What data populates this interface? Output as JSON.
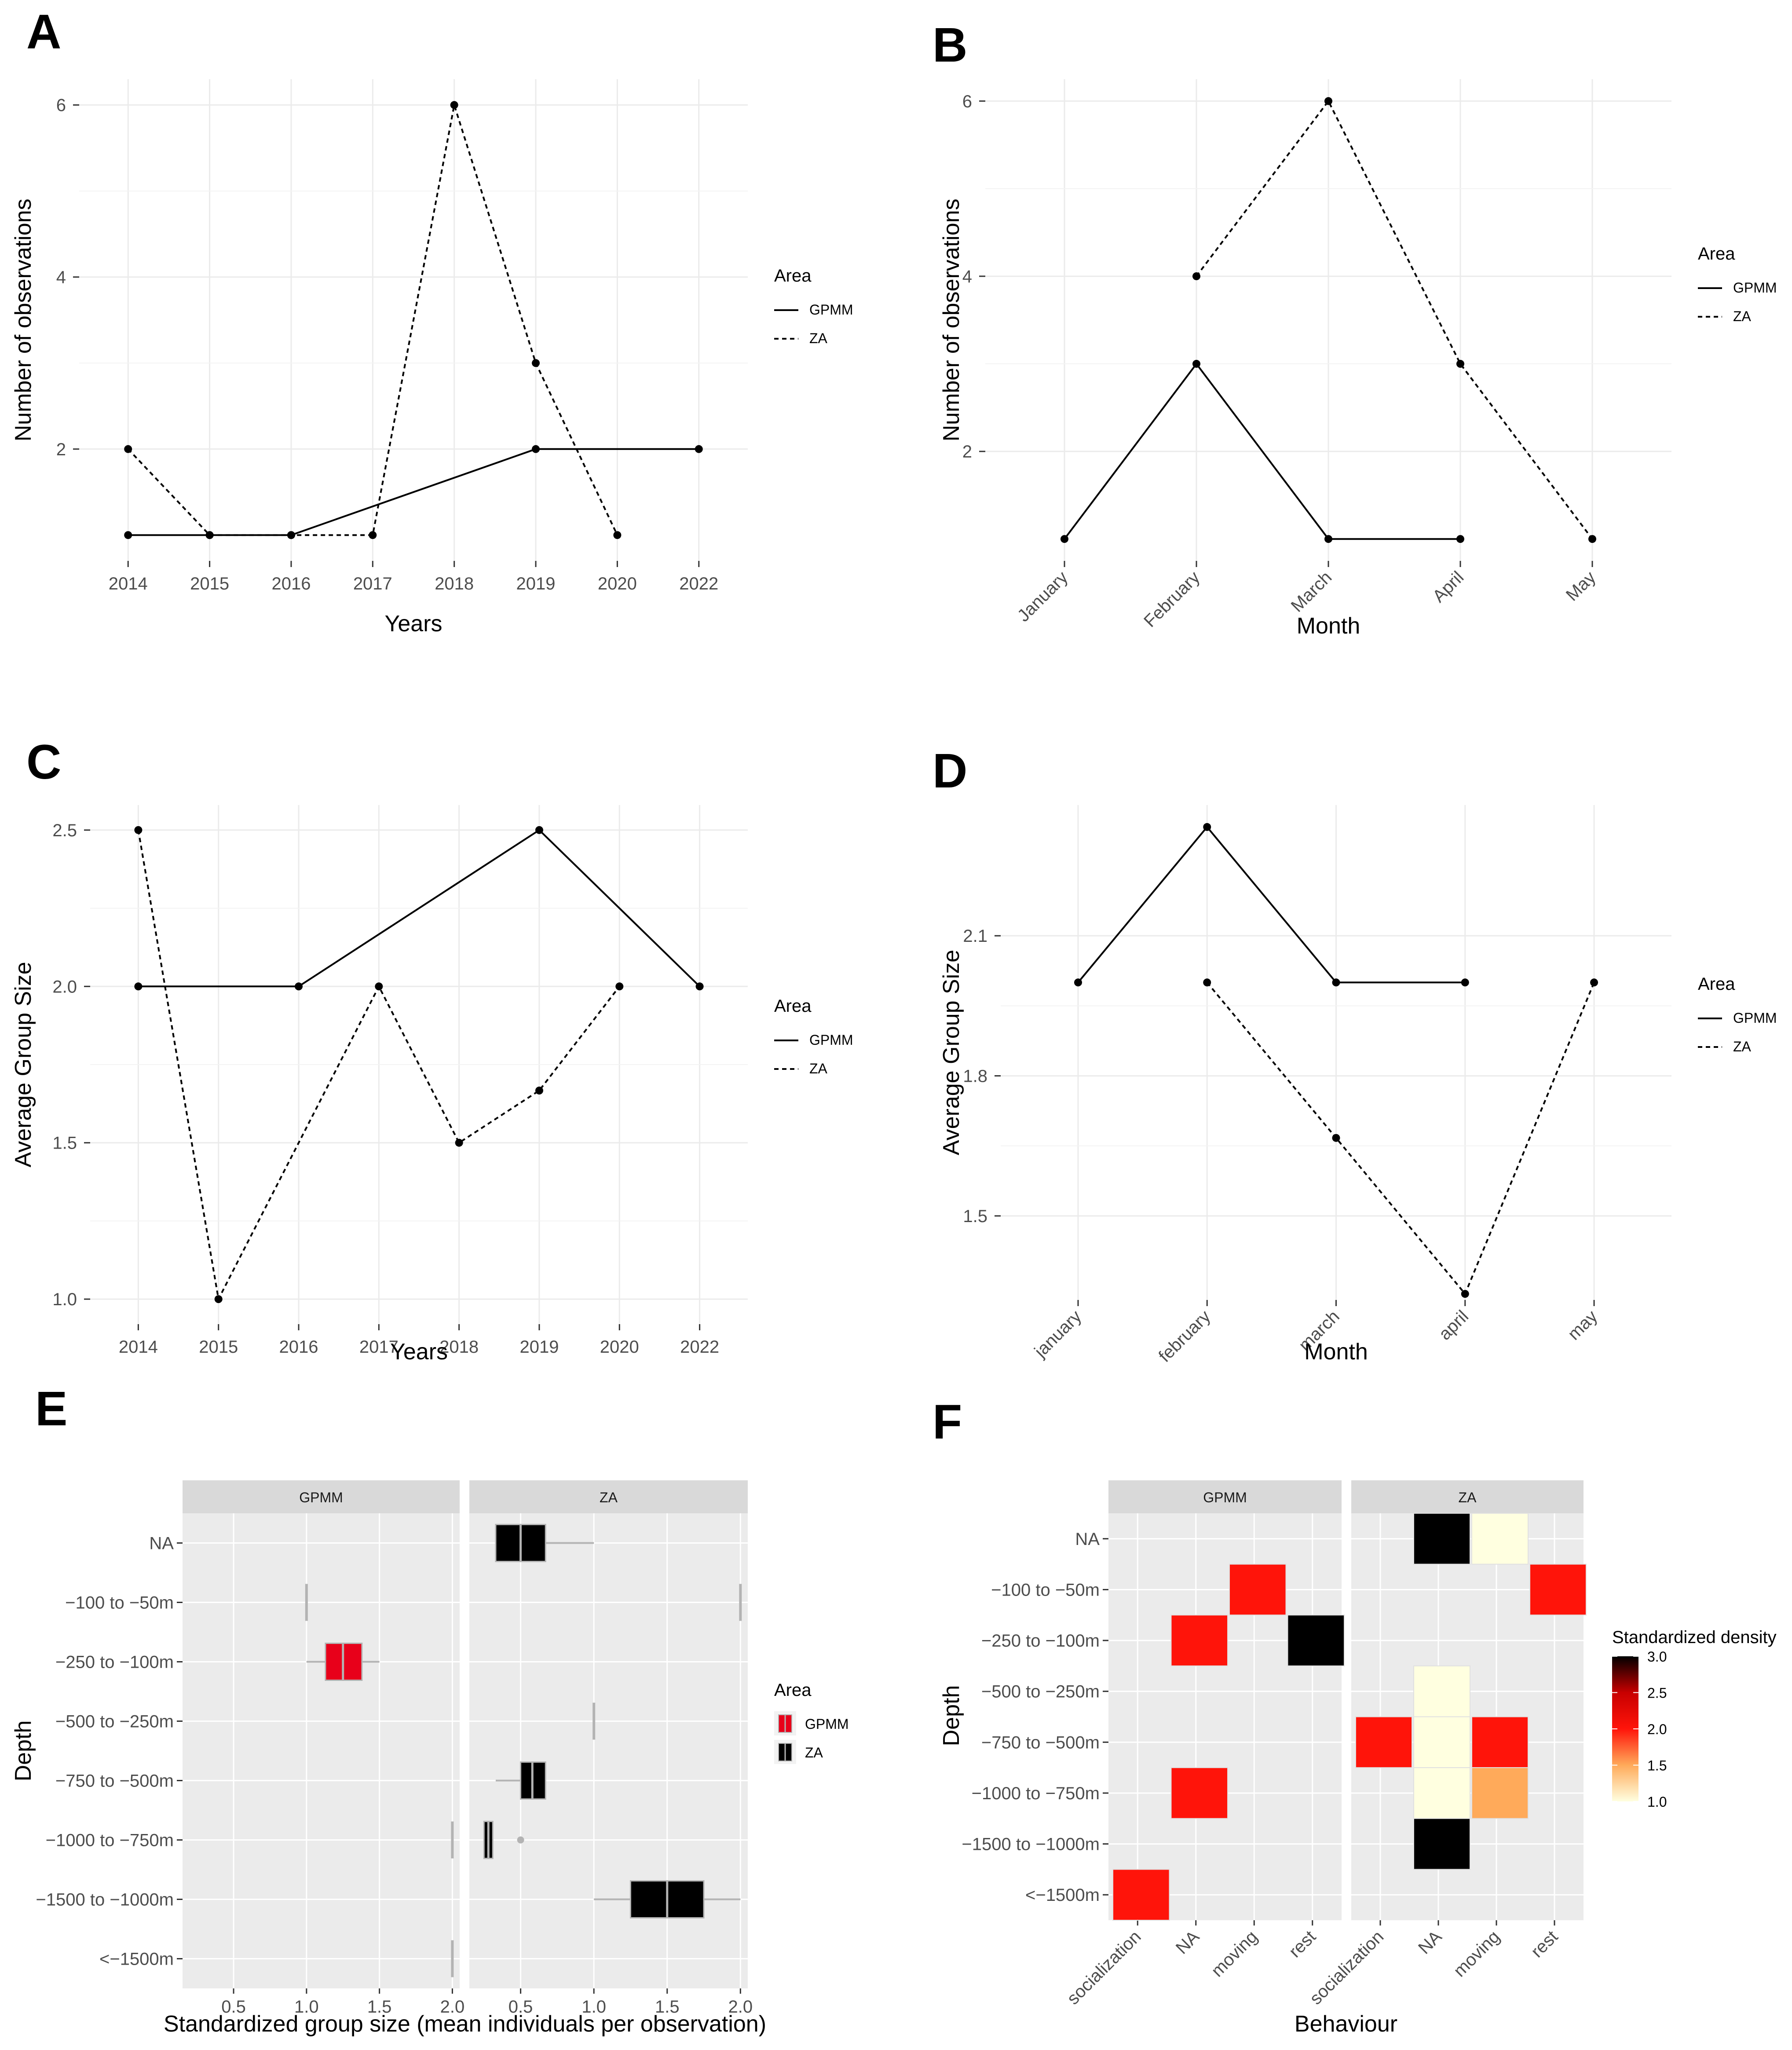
{
  "chart_data": [
    {
      "panel": "A",
      "type": "line",
      "xlabel": "Years",
      "ylabel": "Number of observations",
      "categories": [
        "2014",
        "2015",
        "2016",
        "2017",
        "2018",
        "2019",
        "2020",
        "2022"
      ],
      "ylim": [
        0.7,
        6.3
      ],
      "yticks": [
        2,
        4,
        6
      ],
      "legend": {
        "title": "Area",
        "placement": "right"
      },
      "series": [
        {
          "name": "GPMM",
          "style": "solid",
          "values": [
            1,
            1,
            1,
            null,
            null,
            2,
            null,
            2
          ]
        },
        {
          "name": "ZA",
          "style": "dashed",
          "values": [
            2,
            1,
            1,
            1,
            6,
            3,
            1,
            null
          ]
        }
      ]
    },
    {
      "panel": "B",
      "type": "line",
      "xlabel": "Month",
      "ylabel": "Number of observations",
      "categories": [
        "January",
        "February",
        "March",
        "April",
        "May"
      ],
      "ylim": [
        0.75,
        6.25
      ],
      "yticks": [
        2,
        4,
        6
      ],
      "legend": {
        "title": "Area",
        "placement": "right"
      },
      "series": [
        {
          "name": "GPMM",
          "style": "solid",
          "values": [
            1,
            3,
            1,
            1,
            null
          ]
        },
        {
          "name": "ZA",
          "style": "dashed",
          "values": [
            null,
            4,
            6,
            3,
            1
          ]
        }
      ]
    },
    {
      "panel": "C",
      "type": "line",
      "xlabel": "Years",
      "ylabel": "Average Group Size",
      "categories": [
        "2014",
        "2015",
        "2016",
        "2017",
        "2018",
        "2019",
        "2020",
        "2022"
      ],
      "ylim": [
        0.92,
        2.58
      ],
      "yticks": [
        1.0,
        1.5,
        2.0,
        2.5
      ],
      "ytick_labels": [
        "1.0",
        "1.5",
        "2.0",
        "2.5"
      ],
      "legend": {
        "title": "Area",
        "placement": "right"
      },
      "series": [
        {
          "name": "GPMM",
          "style": "solid",
          "values": [
            2.0,
            null,
            2.0,
            null,
            null,
            2.5,
            null,
            2.0
          ]
        },
        {
          "name": "ZA",
          "style": "dashed",
          "values": [
            2.5,
            1.0,
            null,
            2.0,
            1.5,
            1.667,
            2.0,
            null
          ]
        }
      ]
    },
    {
      "panel": "D",
      "type": "line",
      "xlabel": "Month",
      "ylabel": "Average Group Size",
      "categories": [
        "january",
        "february",
        "march",
        "april",
        "may"
      ],
      "ylim": [
        1.32,
        2.38
      ],
      "yticks": [
        1.5,
        1.8,
        2.1
      ],
      "ytick_labels": [
        "1.5",
        "1.8",
        "2.1"
      ],
      "legend": {
        "title": "Area",
        "placement": "right"
      },
      "series": [
        {
          "name": "GPMM",
          "style": "solid",
          "values": [
            2.0,
            2.333,
            2.0,
            2.0,
            null
          ]
        },
        {
          "name": "ZA",
          "style": "dashed",
          "values": [
            null,
            2.0,
            1.667,
            1.333,
            2.0
          ]
        }
      ]
    },
    {
      "panel": "E",
      "type": "boxplot",
      "xlabel": "Standardized group size (mean individuals per observation)",
      "ylabel": "Depth",
      "categories": [
        "NA",
        "−100 to −50m",
        "−250 to −100m",
        "−500 to −250m",
        "−750 to −500m",
        "−1000 to −750m",
        "−1500 to −1000m",
        "<−1500m"
      ],
      "xlim": [
        0.15,
        2.05
      ],
      "xticks": [
        0.5,
        1.0,
        1.5,
        2.0
      ],
      "xtick_labels": [
        "0.5",
        "1.0",
        "1.5",
        "2.0"
      ],
      "facets": [
        "GPMM",
        "ZA"
      ],
      "legend": {
        "title": "Area",
        "placement": "right",
        "entries": [
          "GPMM",
          "ZA"
        ]
      },
      "colors": {
        "GPMM": "#e8001a",
        "ZA": "#000000",
        "whisker": "#b3b3b3",
        "strip": "#d9d9d9",
        "panel": "#ebebeb"
      },
      "boxes": [
        {
          "facet": "GPMM",
          "depth": "−100 to −50m",
          "min": 1.0,
          "q1": 1.0,
          "median": 1.0,
          "q3": 1.0,
          "max": 1.0
        },
        {
          "facet": "GPMM",
          "depth": "−250 to −100m",
          "min": 1.0,
          "q1": 1.13,
          "median": 1.25,
          "q3": 1.38,
          "max": 1.5
        },
        {
          "facet": "GPMM",
          "depth": "−1000 to −750m",
          "min": 2.0,
          "q1": 2.0,
          "median": 2.0,
          "q3": 2.0,
          "max": 2.0
        },
        {
          "facet": "GPMM",
          "depth": "<−1500m",
          "min": 2.0,
          "q1": 2.0,
          "median": 2.0,
          "q3": 2.0,
          "max": 2.0
        },
        {
          "facet": "ZA",
          "depth": "NA",
          "min": 0.33,
          "q1": 0.33,
          "median": 0.5,
          "q3": 0.67,
          "max": 1.0
        },
        {
          "facet": "ZA",
          "depth": "−100 to −50m",
          "min": 2.0,
          "q1": 2.0,
          "median": 2.0,
          "q3": 2.0,
          "max": 2.0
        },
        {
          "facet": "ZA",
          "depth": "−500 to −250m",
          "min": 1.0,
          "q1": 1.0,
          "median": 1.0,
          "q3": 1.0,
          "max": 1.0
        },
        {
          "facet": "ZA",
          "depth": "−750 to −500m",
          "min": 0.33,
          "q1": 0.5,
          "median": 0.58,
          "q3": 0.67,
          "max": 0.67
        },
        {
          "facet": "ZA",
          "depth": "−1000 to −750m",
          "min": 0.25,
          "q1": 0.25,
          "median": 0.28,
          "q3": 0.31,
          "max": 0.31,
          "outliers": [
            0.5
          ]
        },
        {
          "facet": "ZA",
          "depth": "−1500 to −1000m",
          "min": 1.0,
          "q1": 1.25,
          "median": 1.5,
          "q3": 1.75,
          "max": 2.0
        }
      ]
    },
    {
      "panel": "F",
      "type": "heatmap",
      "xlabel": "Behaviour",
      "ylabel": "Depth",
      "x": [
        "socialization",
        "NA",
        "moving",
        "rest"
      ],
      "y": [
        "NA",
        "−100 to −50m",
        "−250 to −100m",
        "−500 to −250m",
        "−750 to −500m",
        "−1000 to −750m",
        "−1500 to −1000m",
        "<−1500m"
      ],
      "facets": [
        "GPMM",
        "ZA"
      ],
      "colorbar": {
        "title": "Standardized density",
        "range": [
          1.0,
          3.0
        ],
        "ticks": [
          "1.0",
          "1.5",
          "2.0",
          "2.5",
          "3.0"
        ],
        "placement": "right"
      },
      "colors": {
        "low": "#ffffe0",
        "mid_low": "#ff8800",
        "mid": "#ff1a0a",
        "mid_high": "#cc0000",
        "high": "#000000",
        "panel": "#ebebeb",
        "strip": "#d9d9d9"
      },
      "cells": [
        {
          "facet": "GPMM",
          "x": "socialization",
          "y": "<−1500m",
          "value": 2.0
        },
        {
          "facet": "GPMM",
          "x": "NA",
          "y": "−250 to −100m",
          "value": 2.0
        },
        {
          "facet": "GPMM",
          "x": "NA",
          "y": "−1000 to −750m",
          "value": 2.0
        },
        {
          "facet": "GPMM",
          "x": "moving",
          "y": "−100 to −50m",
          "value": 2.0
        },
        {
          "facet": "GPMM",
          "x": "rest",
          "y": "−250 to −100m",
          "value": 3.0
        },
        {
          "facet": "ZA",
          "x": "socialization",
          "y": "−750 to −500m",
          "value": 2.0
        },
        {
          "facet": "ZA",
          "x": "NA",
          "y": "NA",
          "value": 3.0
        },
        {
          "facet": "ZA",
          "x": "NA",
          "y": "−500 to −250m",
          "value": 1.0
        },
        {
          "facet": "ZA",
          "x": "NA",
          "y": "−750 to −500m",
          "value": 1.0
        },
        {
          "facet": "ZA",
          "x": "NA",
          "y": "−1000 to −750m",
          "value": 1.0
        },
        {
          "facet": "ZA",
          "x": "NA",
          "y": "−1500 to −1000m",
          "value": 3.0
        },
        {
          "facet": "ZA",
          "x": "moving",
          "y": "NA",
          "value": 1.0
        },
        {
          "facet": "ZA",
          "x": "moving",
          "y": "−750 to −500m",
          "value": 2.0
        },
        {
          "facet": "ZA",
          "x": "moving",
          "y": "−1000 to −750m",
          "value": 1.5
        },
        {
          "facet": "ZA",
          "x": "rest",
          "y": "−100 to −50m",
          "value": 2.0
        }
      ]
    }
  ]
}
